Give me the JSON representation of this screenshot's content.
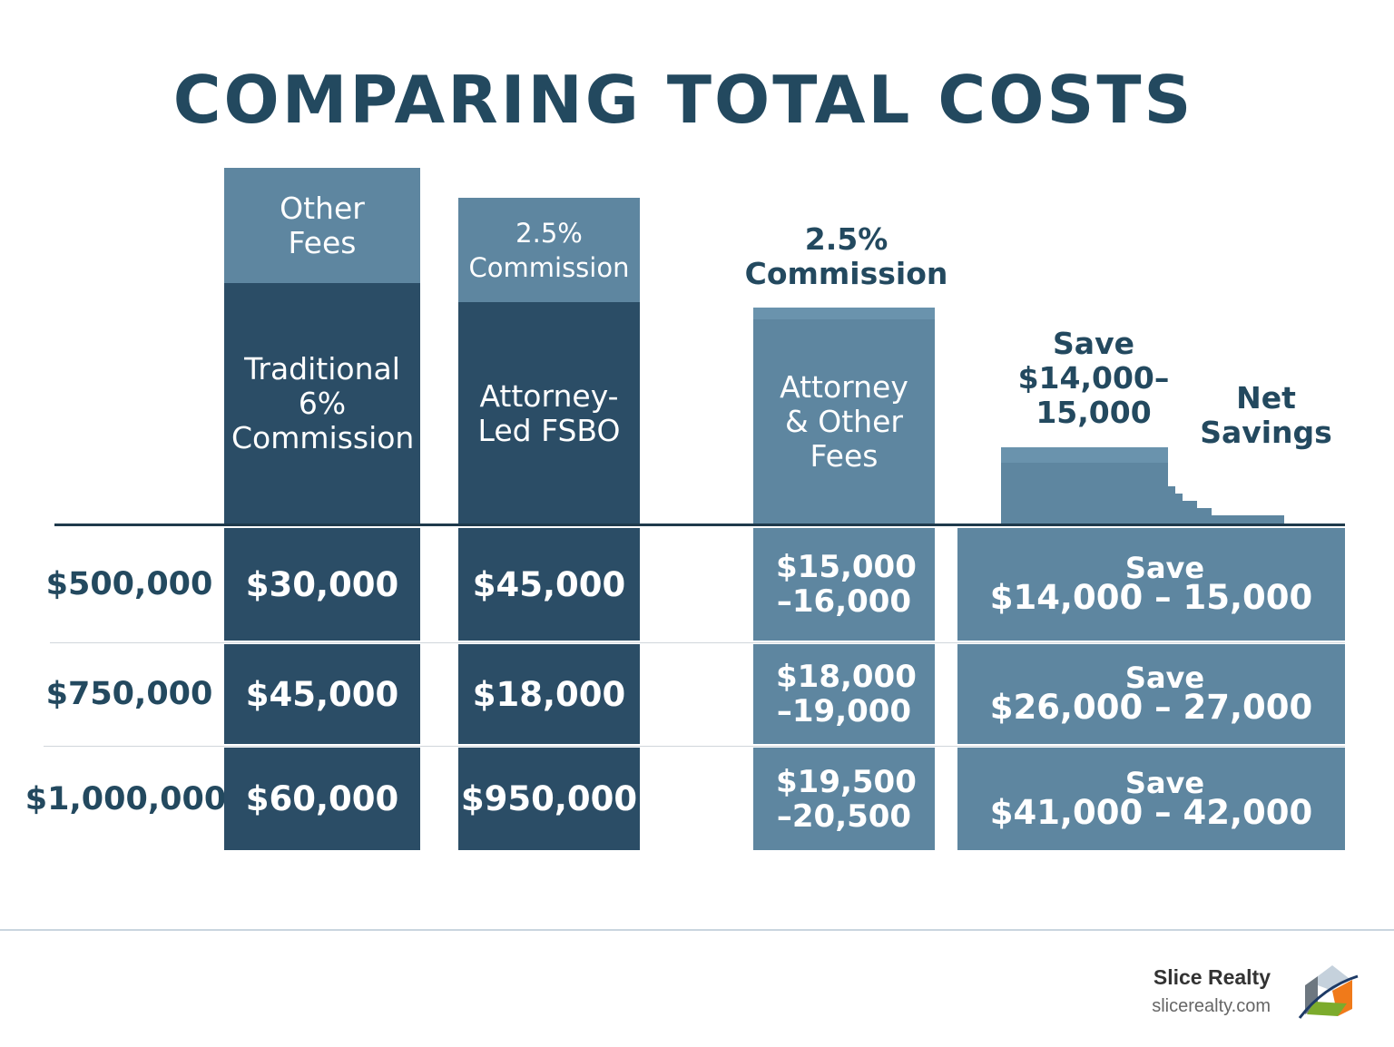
{
  "title": "COMPARING TOTAL COSTS",
  "columns": {
    "traditional": {
      "top_label": "Other Fees",
      "label": "Traditional 6% Commission"
    },
    "attorney_fsbo": {
      "top_label": "2.5% Commission",
      "label": "Attorney-Led FSBO"
    },
    "attorney_fees": {
      "header": "2.5% Commission",
      "label": "Attorney & Other Fees"
    },
    "savings": {
      "header_save": "Save $14,000–15,000",
      "header_net": "Net Savings"
    }
  },
  "rows": [
    {
      "price": "$500,000",
      "traditional": "$30,000",
      "attorney_fsbo": "$45,000",
      "attorney_fees": "$15,000 –16,000",
      "save_word": "Save",
      "save_range": "$14,000 – 15,000"
    },
    {
      "price": "$750,000",
      "traditional": "$45,000",
      "attorney_fsbo": "$18,000",
      "attorney_fees": "$18,000 –19,000",
      "save_word": "Save",
      "save_range": "$26,000 – 27,000"
    },
    {
      "price": "$1,000,000",
      "traditional": "$60,000",
      "attorney_fsbo": "$950,000",
      "attorney_fees": "$19,500 –20,500",
      "save_word": "Save",
      "save_range": "$41,000 – 42,000"
    }
  ],
  "footer": {
    "brand": "Slice Realty",
    "url": "slicerealty.com",
    "logo_icon": "house-logo-icon"
  },
  "colors": {
    "title": "#23495f",
    "dark_bar": "#2b4d66",
    "light_bar": "#5e86a0",
    "cap": "#6a93ad"
  },
  "chart_data": {
    "type": "table",
    "title": "COMPARING TOTAL COSTS",
    "columns": [
      "",
      "Traditional 6% Commission",
      "Attorney-Led FSBO",
      "Attorney & Other Fees",
      "Net Savings"
    ],
    "rows": [
      [
        "$500,000",
        "$30,000",
        "$45,000",
        "$15,000 –16,000",
        "Save $14,000 – 15,000"
      ],
      [
        "$750,000",
        "$45,000",
        "$18,000",
        "$18,000 –19,000",
        "Save $26,000 – 27,000"
      ],
      [
        "$1,000,000",
        "$60,000",
        "$950,000",
        "$19,500 –20,500",
        "Save $41,000 – 42,000"
      ]
    ]
  }
}
